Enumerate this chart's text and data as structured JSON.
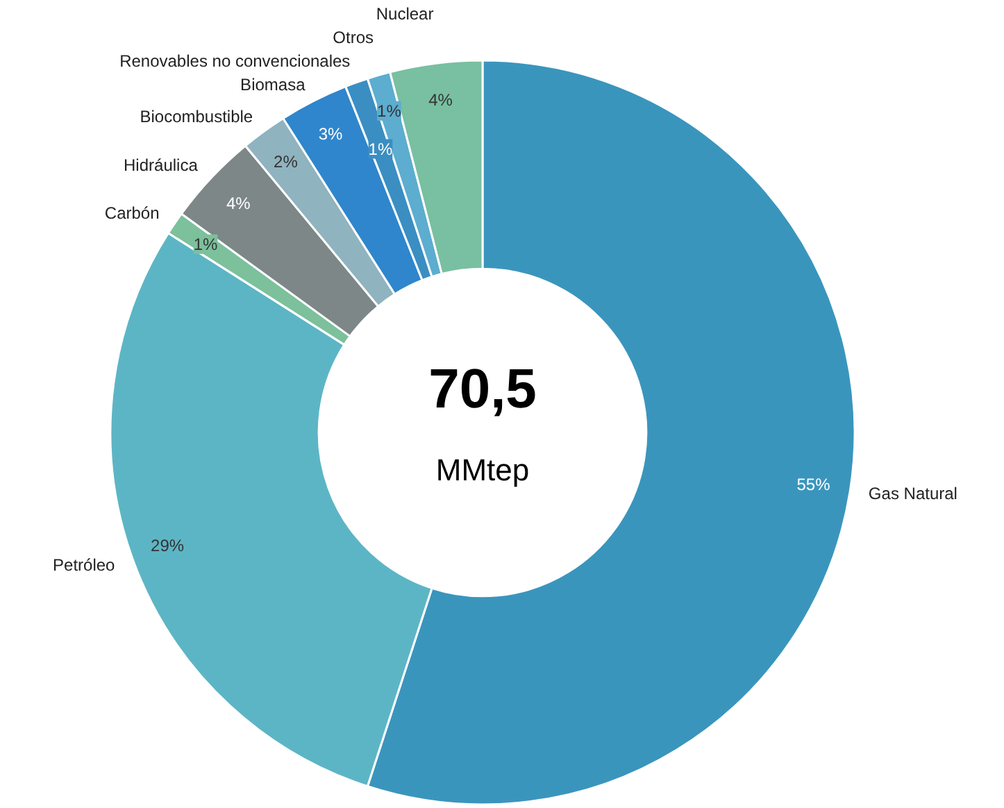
{
  "chart_data": {
    "type": "donut",
    "categories": [
      "Gas Natural",
      "Petróleo",
      "Carbón",
      "Hidráulica",
      "Biocombustible",
      "Biomasa",
      "Renovables no convencionales",
      "Otros",
      "Nuclear"
    ],
    "values": [
      55,
      29,
      1,
      4,
      2,
      3,
      1,
      1,
      4
    ],
    "colors": [
      "#3a95bd",
      "#5cb5c5",
      "#7cc09c",
      "#7d8787",
      "#8fb3bf",
      "#2f86cc",
      "#3b8ec2",
      "#5cadcf",
      "#79bfa1"
    ],
    "value_labels": [
      "55%",
      "29%",
      "1%",
      "4%",
      "2%",
      "3%",
      "1%",
      "1%",
      "4%"
    ],
    "annotations": [
      "70,5",
      "MMtep"
    ]
  }
}
